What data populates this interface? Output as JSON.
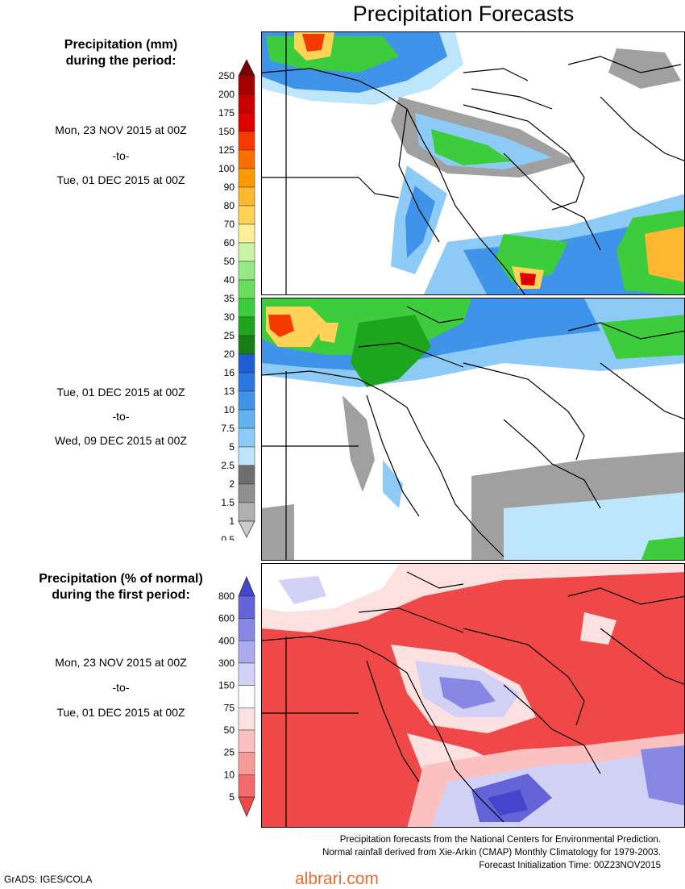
{
  "page": {
    "title": "Precipitation Forecasts"
  },
  "legend_mm": {
    "header_line1": "Precipitation (mm)",
    "header_line2": "during the period:",
    "labels": [
      "250",
      "200",
      "175",
      "150",
      "125",
      "100",
      "90",
      "80",
      "70",
      "60",
      "50",
      "40",
      "35",
      "30",
      "25",
      "20",
      "16",
      "13",
      "10",
      "7.5",
      "5",
      "2.5",
      "2",
      "1.5",
      "1",
      "0.5"
    ],
    "colors": [
      "#7a0000",
      "#a50000",
      "#c80000",
      "#e00000",
      "#f53a00",
      "#fa7000",
      "#fd9a00",
      "#feb730",
      "#ffd258",
      "#fff09a",
      "#caf5a8",
      "#96e985",
      "#69de5c",
      "#3ccc3c",
      "#1ea51e",
      "#157e15",
      "#1d5fd0",
      "#2c78e0",
      "#3f94ea",
      "#63b2f0",
      "#8dcbf6",
      "#bde5fb",
      "#6e6e6e",
      "#909090",
      "#b0b0b0",
      "#cccccc"
    ]
  },
  "period1": {
    "from": "Mon, 23 NOV 2015 at 00Z",
    "sep": "-to-",
    "to": "Tue, 01 DEC 2015 at 00Z"
  },
  "period2": {
    "from": "Tue, 01 DEC 2015 at 00Z",
    "sep": "-to-",
    "to": "Wed, 09 DEC 2015 at 00Z"
  },
  "legend_pct": {
    "header_line1": "Precipitation (% of normal)",
    "header_line2": "during the first period:",
    "labels": [
      "800",
      "600",
      "400",
      "300",
      "150",
      "75",
      "50",
      "25",
      "10",
      "5"
    ],
    "colors": [
      "#4444cc",
      "#6464d8",
      "#8888e4",
      "#ababee",
      "#d2d2f7",
      "#ffffff",
      "#fde0e0",
      "#fbc0c0",
      "#f79a9a",
      "#f26a6a",
      "#f04848"
    ]
  },
  "period3": {
    "from": "Mon, 23 NOV 2015 at 00Z",
    "sep": "-to-",
    "to": "Tue, 01 DEC 2015 at 00Z"
  },
  "footer": {
    "line1": "Precipitation forecasts from the National Centers for Environmental Prediction.",
    "line2": "Normal rainfall derived from Xie-Arkin (CMAP) Monthly Climatology for 1979-2003.",
    "line3": "Forecast Initialization Time: 00Z23NOV2015"
  },
  "credit": "GrADS: IGES/COLA",
  "watermark": "albrari.com"
}
